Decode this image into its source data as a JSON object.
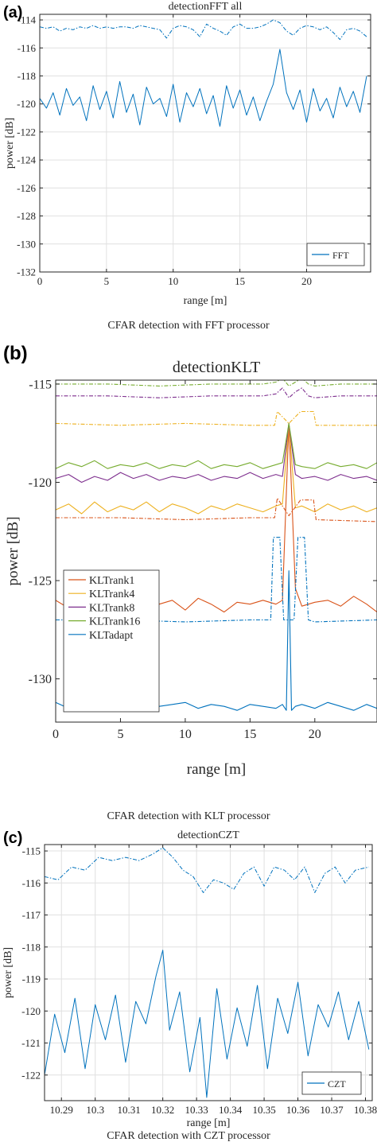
{
  "chart_data": [
    {
      "type": "line",
      "panel_label": "(a)",
      "title": "detectionFFT all",
      "xlabel": "range [m]",
      "ylabel": "power [dB]",
      "caption": "CFAR detection with FFT processor",
      "xlim": [
        0,
        24.8
      ],
      "ylim": [
        -132,
        -113.6
      ],
      "xticks": [
        0,
        5,
        10,
        15,
        20
      ],
      "yticks": [
        -132,
        -130,
        -128,
        -126,
        -124,
        -122,
        -120,
        -118,
        -116,
        -114
      ],
      "grid": true,
      "legend_position": "bottom-right",
      "series": [
        {
          "name": "FFT",
          "color": "#0072BD",
          "style": "solid",
          "x": [
            0,
            0.5,
            1,
            1.5,
            2,
            2.5,
            3,
            3.5,
            4,
            4.5,
            5,
            5.5,
            6,
            6.5,
            7,
            7.5,
            8,
            8.5,
            9,
            9.5,
            10,
            10.5,
            11,
            11.5,
            12,
            12.5,
            13,
            13.5,
            14,
            14.5,
            15,
            15.5,
            16,
            16.5,
            17,
            17.5,
            18,
            18.5,
            19,
            19.5,
            20,
            20.5,
            21,
            21.5,
            22,
            22.5,
            23,
            23.5,
            24,
            24.5
          ],
          "y": [
            -119.6,
            -120.3,
            -119.2,
            -120.8,
            -118.9,
            -120.1,
            -119.5,
            -121.2,
            -118.7,
            -120.4,
            -119.1,
            -121.0,
            -118.4,
            -120.6,
            -119.3,
            -121.5,
            -118.8,
            -120.0,
            -119.6,
            -120.9,
            -118.6,
            -121.3,
            -119.2,
            -120.2,
            -118.9,
            -120.7,
            -119.4,
            -121.6,
            -118.7,
            -120.3,
            -119.0,
            -120.8,
            -119.5,
            -121.2,
            -119.8,
            -118.6,
            -116.1,
            -119.2,
            -120.4,
            -119.0,
            -121.3,
            -118.9,
            -120.5,
            -119.6,
            -121.0,
            -118.8,
            -120.2,
            -119.1,
            -120.6,
            -118.0
          ]
        },
        {
          "name": "",
          "color": "#0072BD",
          "style": "dashdot",
          "x": [
            0,
            0.5,
            1,
            1.5,
            2,
            2.5,
            3,
            3.5,
            4,
            4.5,
            5,
            5.5,
            6,
            6.5,
            7,
            7.5,
            8,
            8.5,
            9,
            9.5,
            10,
            10.5,
            11,
            11.5,
            12,
            12.5,
            13,
            13.5,
            14,
            14.5,
            15,
            15.5,
            16,
            16.5,
            17,
            17.5,
            18,
            18.5,
            19,
            19.5,
            20,
            20.5,
            21,
            21.5,
            22,
            22.5,
            23,
            23.5,
            24,
            24.5
          ],
          "y": [
            -114.5,
            -114.6,
            -114.5,
            -114.8,
            -114.6,
            -114.7,
            -114.5,
            -114.6,
            -114.4,
            -114.6,
            -114.5,
            -114.6,
            -114.5,
            -114.5,
            -114.6,
            -114.4,
            -114.5,
            -114.6,
            -114.7,
            -115.3,
            -114.6,
            -114.4,
            -114.5,
            -114.7,
            -115.2,
            -114.3,
            -114.6,
            -114.8,
            -115.1,
            -114.5,
            -114.3,
            -114.6,
            -114.6,
            -114.5,
            -114.3,
            -114.0,
            -114.2,
            -114.8,
            -115.1,
            -114.6,
            -114.4,
            -114.5,
            -114.7,
            -114.5,
            -114.9,
            -115.4,
            -114.7,
            -114.6,
            -114.8,
            -115.2
          ]
        }
      ]
    },
    {
      "type": "line",
      "panel_label": "(b)",
      "title": "detectionKLT",
      "xlabel": "range [m]",
      "ylabel": "power [dB]",
      "caption": "CFAR detection with KLT processor",
      "xlim": [
        0,
        24.8
      ],
      "ylim": [
        -132.2,
        -114.8
      ],
      "xticks": [
        0,
        5,
        10,
        15,
        20
      ],
      "yticks": [
        -115,
        -120,
        -125,
        -130
      ],
      "grid": false,
      "legend_position": "bottom-left",
      "series": [
        {
          "name": "KLTrank1",
          "color": "#D95319",
          "style": "solid",
          "x": [
            0,
            1,
            2,
            3,
            4,
            5,
            6,
            7,
            8,
            9,
            10,
            11,
            12,
            13,
            14,
            15,
            16,
            17,
            17.5,
            18,
            18.5,
            19,
            20,
            21,
            22,
            23,
            24,
            24.8
          ],
          "y": [
            -126.0,
            -126.4,
            -125.8,
            -126.6,
            -126.1,
            -125.9,
            -126.3,
            -125.2,
            -126.2,
            -126.0,
            -126.5,
            -125.9,
            -126.2,
            -126.6,
            -126.1,
            -126.2,
            -126.0,
            -126.2,
            -126.0,
            -117.0,
            -125.4,
            -126.3,
            -126.1,
            -126.0,
            -126.3,
            -125.8,
            -126.2,
            -126.6
          ]
        },
        {
          "name": "KLTrank4",
          "color": "#EDB120",
          "style": "solid",
          "x": [
            0,
            1,
            2,
            3,
            4,
            5,
            6,
            7,
            8,
            9,
            10,
            11,
            12,
            13,
            14,
            15,
            16,
            17,
            17.5,
            18,
            18.5,
            19,
            20,
            21,
            22,
            23,
            24,
            24.8
          ],
          "y": [
            -121.4,
            -121.1,
            -121.6,
            -121.0,
            -121.5,
            -121.2,
            -121.4,
            -121.0,
            -121.5,
            -121.1,
            -121.3,
            -121.6,
            -121.2,
            -121.4,
            -121.1,
            -121.3,
            -121.5,
            -121.2,
            -121.1,
            -117.0,
            -121.3,
            -121.2,
            -121.5,
            -121.1,
            -121.4,
            -121.2,
            -121.5,
            -121.3
          ]
        },
        {
          "name": "KLTrank8",
          "color": "#7E2F8E",
          "style": "solid",
          "x": [
            0,
            1,
            2,
            3,
            4,
            5,
            6,
            7,
            8,
            9,
            10,
            11,
            12,
            13,
            14,
            15,
            16,
            17,
            17.5,
            18,
            18.5,
            19,
            20,
            21,
            22,
            23,
            24,
            24.8
          ],
          "y": [
            -119.8,
            -119.6,
            -120.0,
            -119.7,
            -119.9,
            -119.5,
            -119.8,
            -119.6,
            -119.9,
            -119.7,
            -119.8,
            -119.6,
            -119.9,
            -119.7,
            -119.8,
            -119.5,
            -119.8,
            -119.6,
            -119.7,
            -117.0,
            -119.6,
            -119.8,
            -119.7,
            -119.9,
            -119.6,
            -119.8,
            -119.7,
            -119.9
          ]
        },
        {
          "name": "KLTrank16",
          "color": "#77AC30",
          "style": "solid",
          "x": [
            0,
            1,
            2,
            3,
            4,
            5,
            6,
            7,
            8,
            9,
            10,
            11,
            12,
            13,
            14,
            15,
            16,
            17,
            17.5,
            18,
            18.5,
            19,
            20,
            21,
            22,
            23,
            24,
            24.8
          ],
          "y": [
            -119.3,
            -119.0,
            -119.2,
            -118.9,
            -119.3,
            -119.1,
            -119.2,
            -119.0,
            -119.3,
            -119.1,
            -119.2,
            -118.9,
            -119.3,
            -119.1,
            -119.2,
            -119.0,
            -119.3,
            -119.1,
            -119.0,
            -117.0,
            -119.1,
            -119.2,
            -119.3,
            -119.0,
            -119.2,
            -119.1,
            -119.3,
            -119.0
          ]
        },
        {
          "name": "KLTadapt",
          "color": "#0072BD",
          "style": "solid",
          "x": [
            0,
            1,
            2,
            3,
            4,
            5,
            6,
            7,
            8,
            9,
            10,
            11,
            12,
            13,
            14,
            15,
            16,
            17,
            17.5,
            17.8,
            18,
            18.2,
            18.5,
            19,
            20,
            21,
            22,
            23,
            24,
            24.8
          ],
          "y": [
            -131.2,
            -131.5,
            -131.1,
            -131.6,
            -131.3,
            -131.2,
            -131.5,
            -131.1,
            -131.4,
            -131.3,
            -131.2,
            -131.5,
            -131.3,
            -131.4,
            -131.6,
            -131.3,
            -131.4,
            -131.5,
            -131.3,
            -131.6,
            -124.5,
            -131.6,
            -131.4,
            -131.3,
            -131.5,
            -131.2,
            -131.4,
            -131.6,
            -131.3,
            -131.5
          ]
        },
        {
          "name": "",
          "color": "#77AC30",
          "style": "dashdot",
          "x": [
            0,
            4,
            8,
            12,
            16,
            17,
            17.5,
            18,
            18.5,
            19,
            19.5,
            20,
            22,
            24.8
          ],
          "y": [
            -115.0,
            -115.0,
            -115.1,
            -115.0,
            -115.0,
            -114.9,
            -114.7,
            -115.1,
            -114.9,
            -114.7,
            -115.0,
            -115.1,
            -115.0,
            -115.0
          ]
        },
        {
          "name": "",
          "color": "#7E2F8E",
          "style": "dashdot",
          "x": [
            0,
            4,
            8,
            12,
            16,
            17,
            17.5,
            18,
            18.5,
            19,
            19.5,
            20,
            22,
            24.8
          ],
          "y": [
            -115.6,
            -115.6,
            -115.7,
            -115.6,
            -115.6,
            -115.5,
            -115.2,
            -115.7,
            -115.4,
            -115.2,
            -115.6,
            -115.7,
            -115.6,
            -115.6
          ]
        },
        {
          "name": "",
          "color": "#EDB120",
          "style": "dashdot",
          "x": [
            0,
            5,
            10,
            15,
            16.9,
            17.1,
            18.0,
            18.9,
            19.1,
            19.9,
            20.1,
            24.8
          ],
          "y": [
            -117.0,
            -117.1,
            -117.0,
            -117.1,
            -117.1,
            -116.4,
            -117.0,
            -116.4,
            -116.4,
            -116.4,
            -117.1,
            -117.1
          ]
        },
        {
          "name": "",
          "color": "#D95319",
          "style": "dashdot",
          "x": [
            0,
            5,
            10,
            15,
            16.9,
            17.1,
            18.0,
            18.9,
            19.1,
            19.9,
            20.1,
            24.8
          ],
          "y": [
            -121.8,
            -121.8,
            -121.9,
            -121.8,
            -121.8,
            -120.8,
            -121.7,
            -120.9,
            -120.9,
            -120.9,
            -121.9,
            -122.0
          ]
        },
        {
          "name": "",
          "color": "#0072BD",
          "style": "dashdot",
          "x": [
            0,
            5,
            10,
            15,
            16.6,
            16.8,
            17.3,
            17.6,
            18.0,
            18.4,
            18.7,
            19.2,
            19.5,
            20,
            24.8
          ],
          "y": [
            -127.0,
            -127.0,
            -127.1,
            -127.0,
            -127.0,
            -122.8,
            -122.8,
            -127.0,
            -127.0,
            -127.0,
            -122.8,
            -122.8,
            -127.0,
            -127.1,
            -127.0
          ]
        }
      ]
    },
    {
      "type": "line",
      "panel_label": "(c)",
      "title": "detectionCZT",
      "xlabel": "range [m]",
      "ylabel": "power [dB]",
      "caption": "CFAR detection with CZT processor",
      "xlim": [
        10.285,
        10.382
      ],
      "ylim": [
        -122.8,
        -114.8
      ],
      "xticks": [
        10.29,
        10.3,
        10.31,
        10.32,
        10.33,
        10.34,
        10.35,
        10.36,
        10.37,
        10.38
      ],
      "xticklabels": [
        "10.29",
        "10.3",
        "10.31",
        "10.32",
        "10.33",
        "10.34",
        "10.35",
        "10.36",
        "10.37",
        "10.38"
      ],
      "yticks": [
        -115,
        -116,
        -117,
        -118,
        -119,
        -120,
        -121,
        -122
      ],
      "grid": true,
      "legend_position": "bottom-right",
      "series": [
        {
          "name": "CZT",
          "color": "#0072BD",
          "style": "solid",
          "x": [
            10.285,
            10.288,
            10.291,
            10.294,
            10.297,
            10.3,
            10.303,
            10.306,
            10.309,
            10.312,
            10.315,
            10.318,
            10.32,
            10.322,
            10.325,
            10.328,
            10.331,
            10.333,
            10.336,
            10.339,
            10.342,
            10.345,
            10.348,
            10.351,
            10.354,
            10.357,
            10.36,
            10.363,
            10.366,
            10.369,
            10.372,
            10.375,
            10.378,
            10.381
          ],
          "y": [
            -122.0,
            -120.1,
            -121.3,
            -119.6,
            -121.8,
            -119.8,
            -120.9,
            -119.5,
            -121.6,
            -119.7,
            -120.4,
            -118.9,
            -118.1,
            -120.6,
            -119.4,
            -121.9,
            -120.2,
            -122.7,
            -119.3,
            -121.5,
            -119.9,
            -121.1,
            -119.2,
            -121.8,
            -119.6,
            -120.7,
            -119.1,
            -121.4,
            -119.8,
            -120.5,
            -119.4,
            -120.9,
            -119.7,
            -121.2
          ]
        },
        {
          "name": "",
          "color": "#0072BD",
          "style": "dashdot",
          "x": [
            10.285,
            10.289,
            10.293,
            10.297,
            10.301,
            10.305,
            10.309,
            10.313,
            10.317,
            10.32,
            10.323,
            10.326,
            10.329,
            10.332,
            10.335,
            10.338,
            10.341,
            10.344,
            10.347,
            10.35,
            10.353,
            10.356,
            10.359,
            10.362,
            10.365,
            10.368,
            10.371,
            10.374,
            10.377,
            10.381
          ],
          "y": [
            -115.8,
            -115.9,
            -115.5,
            -115.6,
            -115.2,
            -115.3,
            -115.2,
            -115.3,
            -115.1,
            -114.9,
            -115.2,
            -115.6,
            -115.8,
            -116.3,
            -115.9,
            -116.0,
            -116.2,
            -115.7,
            -115.5,
            -116.1,
            -115.5,
            -115.6,
            -115.9,
            -115.5,
            -116.3,
            -115.7,
            -115.5,
            -116.0,
            -115.6,
            -115.5
          ]
        }
      ]
    }
  ]
}
